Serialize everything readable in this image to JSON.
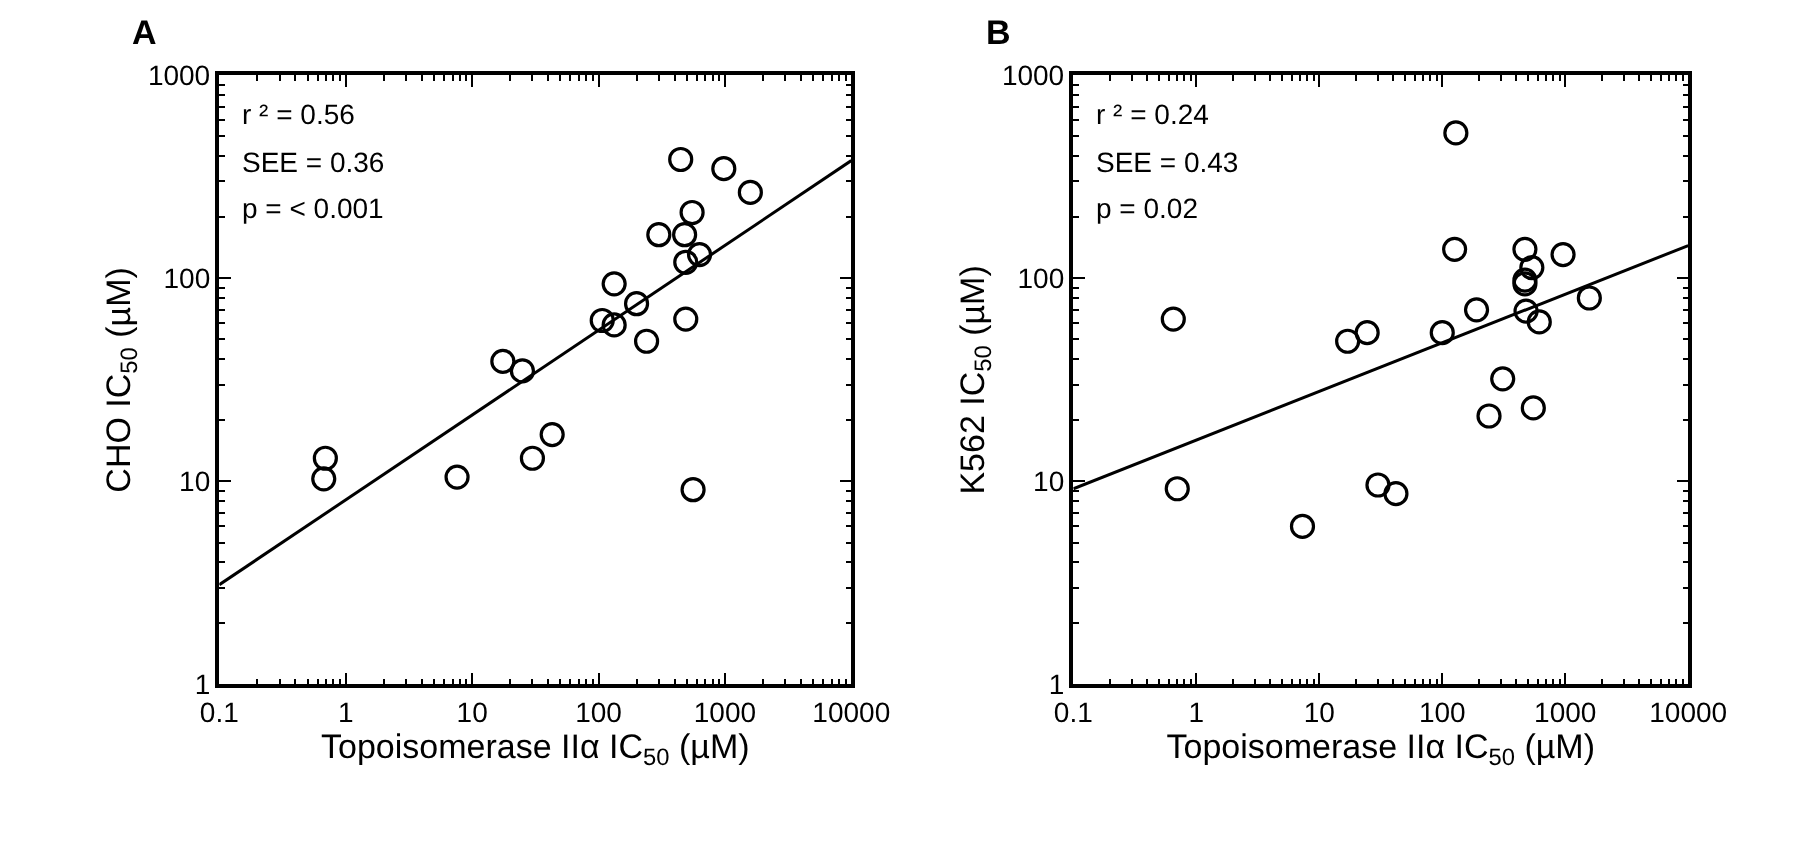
{
  "chart_data": [
    {
      "type": "scatter",
      "title": "A",
      "xlabel": "Topoisomerase IIα IC$_{50}$ (µM)",
      "ylabel": "CHO IC$_{50}$ (µM)",
      "log": "xy",
      "xlim": [
        0.1,
        10000
      ],
      "ylim": [
        1,
        1000
      ],
      "xticks": [
        0.1,
        1,
        10,
        100,
        1000,
        10000
      ],
      "yticks": [
        1,
        10,
        100,
        1000
      ],
      "annotations": [
        "r ² = 0.56",
        "SEE = 0.36",
        "p = < 0.001"
      ],
      "series": [
        {
          "marker": "circle",
          "color": "#000000",
          "x": [
            447,
            980,
            1590,
            550,
            300,
            480,
            490,
            630,
            133,
            200,
            107,
            133,
            240,
            490,
            17.5,
            25,
            43,
            30,
            7.6,
            0.69,
            0.67,
            560
          ],
          "values": [
            385,
            347,
            265,
            211,
            164,
            164,
            120,
            131,
            94,
            75,
            62,
            59,
            49,
            63,
            39,
            35,
            17,
            13,
            10.5,
            13,
            10.3,
            9.1
          ]
        },
        {
          "type": "line",
          "color": "#000000",
          "x": [
            0.1,
            10000
          ],
          "values": [
            3.1,
            380
          ]
        }
      ]
    },
    {
      "type": "scatter",
      "title": "B",
      "xlabel": "Topoisomerase IIα IC$_{50}$ (µM)",
      "ylabel": "K562 IC$_{50}$ (µM)",
      "log": "xy",
      "xlim": [
        0.1,
        10000
      ],
      "ylim": [
        1,
        1000
      ],
      "xticks": [
        0.1,
        1,
        10,
        100,
        1000,
        10000
      ],
      "yticks": [
        1,
        10,
        100,
        1000
      ],
      "annotations": [
        "r ² = 0.24",
        "SEE = 0.43",
        "p = 0.02"
      ],
      "series": [
        {
          "marker": "circle",
          "color": "#000000",
          "x": [
            129,
            126,
            470,
            960,
            535,
            470,
            470,
            1570,
            190,
            480,
            615,
            100,
            17,
            24.5,
            0.65,
            310,
            550,
            240,
            0.7,
            30,
            42,
            7.3
          ],
          "values": [
            520,
            139,
            139,
            131,
            113,
            98,
            94,
            80,
            70,
            69,
            61,
            54,
            49,
            54,
            63,
            32,
            23,
            21,
            9.2,
            9.6,
            8.7,
            6.0
          ]
        },
        {
          "type": "line",
          "color": "#000000",
          "x": [
            0.1,
            10000
          ],
          "values": [
            9.2,
            145
          ]
        }
      ]
    }
  ]
}
